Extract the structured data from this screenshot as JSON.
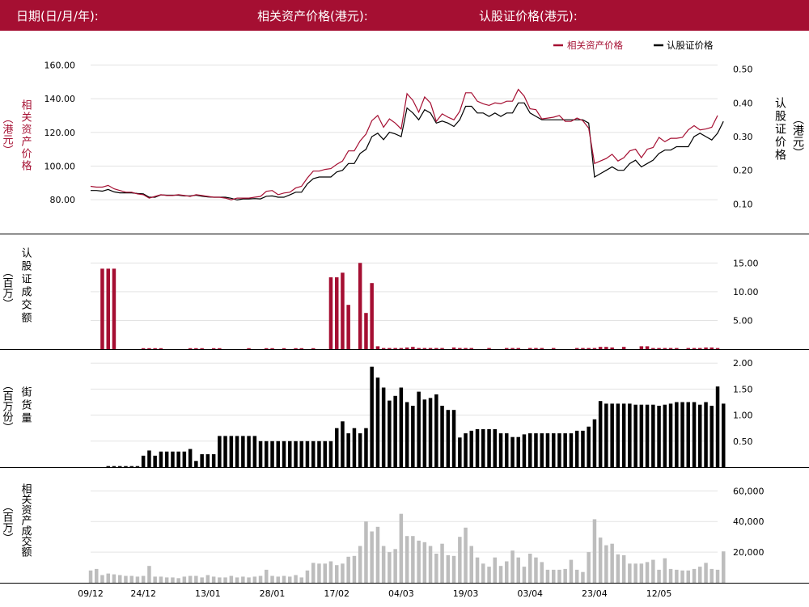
{
  "header": {
    "date_label": "日期(日/月/年):",
    "underlying_label": "相关资产价格(港元):",
    "warrant_label": "认股证价格(港元):"
  },
  "colors": {
    "brand": "#a50f32",
    "warrant": "#000000",
    "underlying_turnover": "#bdbdbd"
  },
  "legend": {
    "underlying": "相关资产价格",
    "warrant": "认股证价格"
  },
  "axis_titles": {
    "left_price": "相关资产价格",
    "left_price_unit": "（港元）",
    "right_price": "认股证价格",
    "right_price_unit": "（港元）",
    "warrant_turnover": "认股证成交额",
    "warrant_turnover_unit": "（百万）",
    "outstanding": "街货量",
    "outstanding_unit": "（百万份）",
    "underlying_turnover": "相关资产成交额",
    "underlying_turnover_unit": "（百万）"
  },
  "chart_data": {
    "type": "line",
    "x_tick_labels": [
      "09/12",
      "24/12",
      "13/01",
      "28/01",
      "17/02",
      "04/03",
      "19/03",
      "03/04",
      "23/04",
      "12/05"
    ],
    "x_tick_index": [
      0,
      9,
      20,
      31,
      42,
      53,
      64,
      75,
      86,
      97
    ],
    "price_left_axis": {
      "ylim": [
        70,
        165
      ],
      "ticks": [
        80,
        100,
        120,
        140,
        160
      ],
      "tick_labels": [
        "80.00",
        "100.00",
        "120.00",
        "140.00",
        "160.00"
      ]
    },
    "price_right_axis": {
      "ylim": [
        0.0625,
        0.5375
      ],
      "ticks": [
        0.1,
        0.2,
        0.3,
        0.4,
        0.5
      ],
      "tick_labels": [
        "0.10",
        "0.20",
        "0.30",
        "0.40",
        "0.50"
      ]
    },
    "underlying_price": [
      88,
      87.5,
      87.5,
      88.5,
      86.5,
      85.5,
      84.5,
      84.5,
      83.5,
      83,
      81,
      82,
      83,
      82.5,
      82.5,
      83,
      82.5,
      82,
      83,
      82.5,
      82,
      81.5,
      81.5,
      81,
      80,
      81,
      81,
      81,
      81.5,
      82,
      85,
      85.5,
      83,
      84,
      84.5,
      87,
      88,
      93,
      97,
      97,
      98,
      98.5,
      101,
      103,
      109,
      109,
      115,
      119,
      127,
      130,
      123,
      128,
      125.5,
      122,
      143,
      139,
      132,
      141,
      137.5,
      126.5,
      131,
      129,
      127.5,
      132.5,
      143.5,
      143.5,
      138.5,
      137,
      136,
      137.5,
      137,
      138.5,
      138.5,
      145.5,
      141.5,
      134,
      133.5,
      128,
      128.5,
      129,
      130,
      126.5,
      126.5,
      128.5,
      127,
      122.5,
      101.5,
      103,
      104.5,
      107,
      103,
      105,
      109,
      110,
      105,
      110,
      111,
      117,
      114.5,
      116.5,
      116.5,
      117,
      121.5,
      124,
      121.5,
      122,
      123,
      130
    ],
    "warrant_price": [
      0.14,
      0.14,
      0.138,
      0.143,
      0.136,
      0.133,
      0.133,
      0.133,
      0.131,
      0.13,
      0.12,
      0.12,
      0.127,
      0.126,
      0.126,
      0.126,
      0.124,
      0.124,
      0.126,
      0.123,
      0.121,
      0.12,
      0.12,
      0.12,
      0.117,
      0.112,
      0.115,
      0.115,
      0.116,
      0.115,
      0.123,
      0.124,
      0.12,
      0.12,
      0.127,
      0.135,
      0.135,
      0.16,
      0.175,
      0.18,
      0.18,
      0.18,
      0.195,
      0.2,
      0.22,
      0.22,
      0.25,
      0.262,
      0.3,
      0.31,
      0.291,
      0.313,
      0.308,
      0.3,
      0.385,
      0.37,
      0.35,
      0.38,
      0.37,
      0.34,
      0.346,
      0.34,
      0.33,
      0.35,
      0.39,
      0.39,
      0.37,
      0.37,
      0.36,
      0.37,
      0.36,
      0.37,
      0.37,
      0.4,
      0.4,
      0.37,
      0.36,
      0.35,
      0.35,
      0.35,
      0.35,
      0.35,
      0.35,
      0.35,
      0.35,
      0.34,
      0.18,
      0.19,
      0.2,
      0.21,
      0.2,
      0.2,
      0.22,
      0.23,
      0.21,
      0.22,
      0.23,
      0.25,
      0.26,
      0.26,
      0.27,
      0.27,
      0.27,
      0.3,
      0.31,
      0.3,
      0.29,
      0.31,
      0.345
    ],
    "warrant_turnover": {
      "ylim": [
        0,
        18
      ],
      "ticks": [
        5,
        10,
        15
      ],
      "tick_labels": [
        "5.00",
        "10.00",
        "15.00"
      ],
      "values": [
        0,
        0,
        14,
        14,
        14,
        0,
        0,
        0,
        0,
        0.1,
        0.1,
        0.1,
        0.1,
        0,
        0,
        0,
        0,
        0.1,
        0.1,
        0.1,
        0,
        0.1,
        0.1,
        0,
        0,
        0,
        0,
        0.1,
        0,
        0,
        0.1,
        0.1,
        0,
        0.1,
        0,
        0.1,
        0.1,
        0,
        0.1,
        0,
        0,
        12.5,
        12.5,
        13.3,
        7.7,
        0,
        15,
        6.3,
        11.5,
        0.5,
        0.2,
        0.2,
        0.2,
        0.2,
        0.3,
        0.4,
        0.2,
        0.2,
        0.2,
        0.2,
        0.2,
        0,
        0.3,
        0.2,
        0.2,
        0.2,
        0,
        0,
        0.2,
        0,
        0,
        0.2,
        0.2,
        0.2,
        0,
        0.2,
        0.2,
        0.2,
        0,
        0.2,
        0,
        0,
        0,
        0.2,
        0.2,
        0.2,
        0.2,
        0.4,
        0.4,
        0.3,
        0,
        0.4,
        0,
        0,
        0.5,
        0.5,
        0.2,
        0.2,
        0.2,
        0.2,
        0.2,
        0,
        0.2,
        0.2,
        0.2,
        0.3,
        0.3,
        0.2
      ]
    },
    "outstanding": {
      "ylim": [
        0,
        2.05
      ],
      "ticks": [
        0.5,
        1,
        1.5,
        2
      ],
      "tick_labels": [
        "0.50",
        "1.00",
        "1.50",
        "2.00"
      ],
      "values": [
        0,
        0,
        0,
        0.02,
        0.02,
        0.02,
        0.02,
        0.02,
        0.02,
        0.22,
        0.32,
        0.22,
        0.3,
        0.3,
        0.3,
        0.3,
        0.3,
        0.35,
        0.12,
        0.25,
        0.25,
        0.25,
        0.6,
        0.6,
        0.6,
        0.6,
        0.6,
        0.6,
        0.6,
        0.5,
        0.5,
        0.5,
        0.5,
        0.5,
        0.5,
        0.5,
        0.5,
        0.5,
        0.5,
        0.5,
        0.5,
        0.5,
        0.75,
        0.88,
        0.65,
        0.75,
        0.65,
        0.75,
        1.93,
        1.72,
        1.53,
        1.28,
        1.37,
        1.53,
        1.25,
        1.18,
        1.45,
        1.3,
        1.33,
        1.4,
        1.18,
        1.1,
        1.1,
        0.57,
        0.65,
        0.7,
        0.73,
        0.73,
        0.73,
        0.73,
        0.65,
        0.65,
        0.58,
        0.58,
        0.63,
        0.65,
        0.65,
        0.65,
        0.65,
        0.65,
        0.65,
        0.65,
        0.65,
        0.7,
        0.7,
        0.78,
        0.92,
        1.27,
        1.22,
        1.22,
        1.22,
        1.22,
        1.22,
        1.2,
        1.2,
        1.2,
        1.2,
        1.18,
        1.2,
        1.22,
        1.25,
        1.25,
        1.25,
        1.25,
        1.2,
        1.25,
        1.18,
        1.55,
        1.22
      ]
    },
    "underlying_turnover": {
      "ylim": [
        0,
        66500
      ],
      "ticks": [
        20000,
        40000,
        60000
      ],
      "tick_labels": [
        "20,000",
        "40,000",
        "60,000"
      ],
      "values": [
        8000,
        9000,
        5000,
        6000,
        5500,
        5000,
        4500,
        4500,
        4000,
        4500,
        11000,
        4000,
        4000,
        3500,
        3500,
        3000,
        4000,
        4500,
        4500,
        3500,
        5000,
        4000,
        3500,
        3500,
        4500,
        3500,
        4000,
        3500,
        4000,
        4500,
        8500,
        4500,
        4000,
        4500,
        4000,
        5000,
        3500,
        8000,
        13000,
        12500,
        12500,
        14000,
        11500,
        12500,
        17000,
        17500,
        24000,
        40000,
        33500,
        36500,
        24000,
        20000,
        22000,
        45000,
        30500,
        30500,
        27500,
        26500,
        24000,
        19000,
        25500,
        18000,
        17500,
        30000,
        36000,
        24000,
        16500,
        12500,
        10500,
        16500,
        11000,
        14000,
        21000,
        16500,
        10500,
        19000,
        16500,
        13500,
        8500,
        8500,
        8500,
        9000,
        15000,
        8500,
        7000,
        20000,
        41500,
        29500,
        24500,
        25500,
        18500,
        18000,
        12500,
        12500,
        12500,
        13500,
        15000,
        8500,
        16000,
        9000,
        8500,
        8000,
        8000,
        9000,
        10500,
        13000,
        9000,
        8500,
        20500
      ]
    }
  }
}
